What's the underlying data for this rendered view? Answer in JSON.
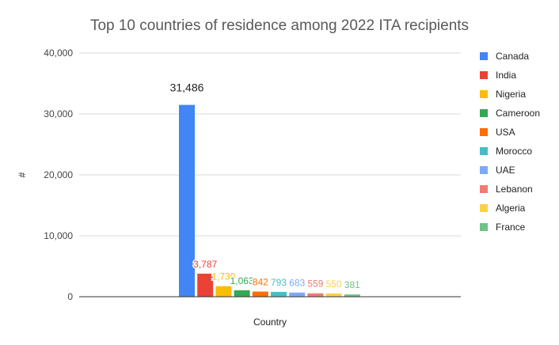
{
  "chart_data": {
    "type": "bar",
    "title": "Top 10 countries of residence among 2022 ITA recipients",
    "xlabel": "Country",
    "ylabel": "#",
    "ylim": [
      0,
      40000
    ],
    "yticks": [
      "0",
      "10,000",
      "20,000",
      "30,000",
      "40,000"
    ],
    "grid": true,
    "legend_position": "right",
    "series": [
      {
        "name": "Canada",
        "value": 31486,
        "label": "31,486",
        "color": "#4285f4"
      },
      {
        "name": "India",
        "value": 3787,
        "label": "3,787",
        "color": "#ea4335"
      },
      {
        "name": "Nigeria",
        "value": 1730,
        "label": "1,730",
        "color": "#fbbc04"
      },
      {
        "name": "Cameroon",
        "value": 1063,
        "label": "1,063",
        "color": "#34a853"
      },
      {
        "name": "USA",
        "value": 842,
        "label": "842",
        "color": "#ff6d01"
      },
      {
        "name": "Morocco",
        "value": 793,
        "label": "793",
        "color": "#46bdc6"
      },
      {
        "name": "UAE",
        "value": 683,
        "label": "683",
        "color": "#7baaf7"
      },
      {
        "name": "Lebanon",
        "value": 559,
        "label": "559",
        "color": "#f07b72"
      },
      {
        "name": "Algeria",
        "value": 550,
        "label": "550",
        "color": "#fcd04f"
      },
      {
        "name": "France",
        "value": 381,
        "label": "381",
        "color": "#71c287"
      }
    ]
  }
}
